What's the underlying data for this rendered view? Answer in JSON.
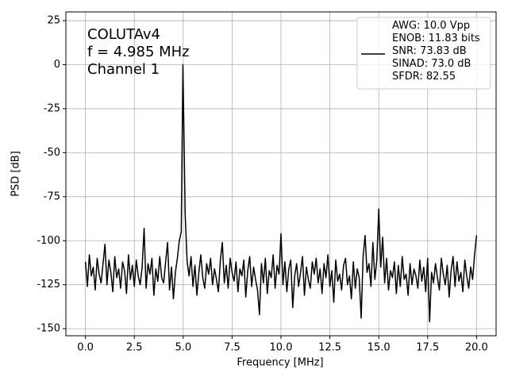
{
  "chart_data": {
    "type": "line",
    "annotation": [
      "COLUTAv4",
      "f = 4.985 MHz",
      "Channel 1"
    ],
    "xlabel": "Frequency [MHz]",
    "ylabel": "PSD [dB]",
    "x": [
      0,
      0.1,
      0.2,
      0.3,
      0.4,
      0.5,
      0.6,
      0.7,
      0.8,
      0.9,
      1,
      1.1,
      1.2,
      1.3,
      1.4,
      1.5,
      1.6,
      1.7,
      1.8,
      1.9,
      2,
      2.1,
      2.2,
      2.3,
      2.4,
      2.5,
      2.6,
      2.7,
      2.8,
      2.9,
      3,
      3.1,
      3.2,
      3.3,
      3.4,
      3.5,
      3.6,
      3.7,
      3.8,
      3.9,
      4,
      4.1,
      4.2,
      4.3,
      4.4,
      4.5,
      4.6,
      4.7,
      4.8,
      4.9,
      4.985,
      5.1,
      5.2,
      5.3,
      5.4,
      5.5,
      5.6,
      5.7,
      5.8,
      5.9,
      6,
      6.1,
      6.2,
      6.3,
      6.4,
      6.5,
      6.6,
      6.7,
      6.8,
      6.9,
      7,
      7.1,
      7.2,
      7.3,
      7.4,
      7.5,
      7.6,
      7.7,
      7.8,
      7.9,
      8,
      8.1,
      8.2,
      8.3,
      8.4,
      8.5,
      8.6,
      8.7,
      8.8,
      8.9,
      9,
      9.1,
      9.2,
      9.3,
      9.4,
      9.5,
      9.6,
      9.7,
      9.8,
      9.9,
      10,
      10.1,
      10.2,
      10.3,
      10.4,
      10.5,
      10.6,
      10.7,
      10.8,
      10.9,
      11,
      11.1,
      11.2,
      11.3,
      11.4,
      11.5,
      11.6,
      11.7,
      11.8,
      11.9,
      12,
      12.1,
      12.2,
      12.3,
      12.4,
      12.5,
      12.6,
      12.7,
      12.8,
      12.9,
      13,
      13.1,
      13.2,
      13.3,
      13.4,
      13.5,
      13.6,
      13.7,
      13.8,
      13.9,
      14,
      14.1,
      14.2,
      14.3,
      14.4,
      14.5,
      14.6,
      14.7,
      14.8,
      14.9,
      15,
      15.1,
      15.2,
      15.3,
      15.4,
      15.5,
      15.6,
      15.7,
      15.8,
      15.9,
      16,
      16.1,
      16.2,
      16.3,
      16.4,
      16.5,
      16.6,
      16.7,
      16.8,
      16.9,
      17,
      17.1,
      17.2,
      17.3,
      17.4,
      17.5,
      17.6,
      17.7,
      17.8,
      17.9,
      18,
      18.1,
      18.2,
      18.3,
      18.4,
      18.5,
      18.6,
      18.7,
      18.8,
      18.9,
      19,
      19.1,
      19.2,
      19.3,
      19.4,
      19.5,
      19.6,
      19.7,
      19.8,
      19.9,
      20
    ],
    "series": [
      {
        "name": "AWG: 10.0 Vpp\nENOB: 11.83 bits\nSNR: 73.83 dB\nSINAD: 73.0 dB\nSFDR: 82.55",
        "color": "#000000",
        "values": [
          -112,
          -126,
          -108,
          -120,
          -115,
          -128,
          -110,
          -119,
          -124,
          -113,
          -102,
          -125,
          -111,
          -118,
          -129,
          -109,
          -121,
          -116,
          -127,
          -112,
          -117,
          -130,
          -108,
          -122,
          -114,
          -126,
          -111,
          -120,
          -125,
          -115,
          -93,
          -127,
          -113,
          -119,
          -110,
          -131,
          -116,
          -123,
          -109,
          -121,
          -124,
          -112,
          -101,
          -128,
          -115,
          -133,
          -118,
          -110,
          -100,
          -95,
          0,
          -85,
          -112,
          -120,
          -109,
          -126,
          -114,
          -131,
          -118,
          -108,
          -121,
          -127,
          -113,
          -119,
          -110,
          -125,
          -116,
          -122,
          -129,
          -111,
          -101,
          -124,
          -114,
          -127,
          -110,
          -118,
          -123,
          -112,
          -129,
          -116,
          -120,
          -111,
          -132,
          -117,
          -109,
          -126,
          -115,
          -122,
          -128,
          -142,
          -113,
          -124,
          -110,
          -130,
          -117,
          -121,
          -108,
          -127,
          -114,
          -119,
          -96,
          -125,
          -112,
          -129,
          -116,
          -111,
          -138,
          -120,
          -113,
          -126,
          -118,
          -109,
          -131,
          -115,
          -122,
          -127,
          -112,
          -119,
          -110,
          -124,
          -116,
          -130,
          -113,
          -121,
          -108,
          -126,
          -117,
          -135,
          -111,
          -123,
          -119,
          -128,
          -114,
          -110,
          -125,
          -120,
          -133,
          -112,
          -127,
          -116,
          -121,
          -144,
          -109,
          -97,
          -118,
          -113,
          -126,
          -101,
          -122,
          -111,
          -82,
          -115,
          -98,
          -124,
          -110,
          -128,
          -117,
          -121,
          -112,
          -130,
          -114,
          -126,
          -109,
          -122,
          -119,
          -131,
          -113,
          -125,
          -116,
          -120,
          -127,
          -111,
          -123,
          -115,
          -129,
          -110,
          -146,
          -118,
          -124,
          -113,
          -121,
          -128,
          -110,
          -119,
          -125,
          -114,
          -132,
          -117,
          -109,
          -126,
          -112,
          -123,
          -118,
          -129,
          -111,
          -120,
          -127,
          -115,
          -122,
          -108,
          -97
        ]
      }
    ],
    "xlim": [
      -1,
      21
    ],
    "xticks": [
      {
        "value": 0,
        "label": "0.0"
      },
      2.5,
      {
        "value": 5,
        "label": "5.0"
      },
      7.5,
      {
        "value": 10,
        "label": "10.0"
      },
      12.5,
      {
        "value": 15,
        "label": "15.0"
      },
      17.5,
      {
        "value": 20,
        "label": "20.0"
      }
    ],
    "ylim": [
      -154,
      30
    ],
    "yticks": [
      25,
      0,
      -25,
      -50,
      -75,
      -100,
      -125,
      -150
    ],
    "grid": true,
    "legend": "upper right"
  }
}
